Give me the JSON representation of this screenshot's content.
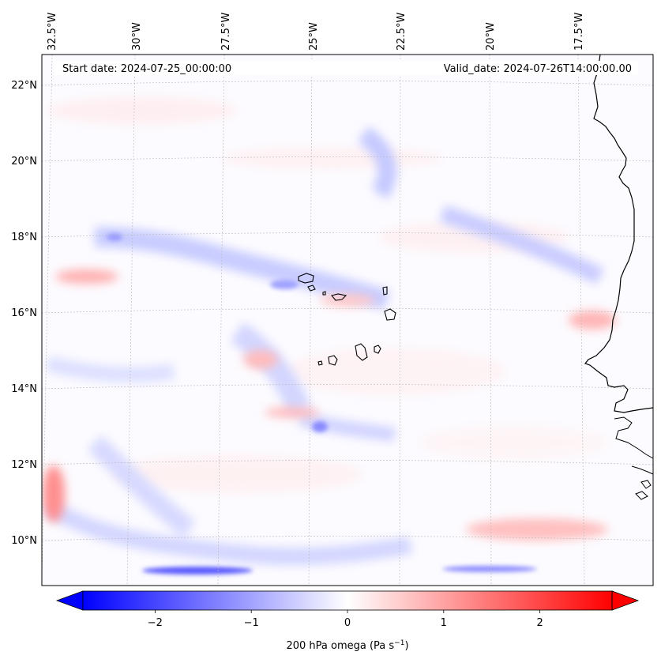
{
  "header": {
    "start_date": "Start date: 2024-07-25_00:00:00",
    "valid_date": "Valid_date: 2024-07-26T14:00:00.00"
  },
  "axes": {
    "lon_labels": [
      "32.5°W",
      "30°W",
      "27.5°W",
      "25°W",
      "22.5°W",
      "20°W",
      "17.5°W"
    ],
    "lat_labels": [
      "22°N",
      "20°N",
      "18°N",
      "16°N",
      "14°N",
      "12°N",
      "10°N"
    ]
  },
  "colorbar": {
    "label": "200 hPa omega (Pa s",
    "label_sup": "−1",
    "label_close": ")",
    "ticks": [
      "−2",
      "−1",
      "0",
      "1",
      "2"
    ],
    "min": -2.75,
    "max": 2.75,
    "low_color": "#0000ff",
    "mid_color": "#ffffff",
    "high_color": "#ff0000"
  },
  "field": {
    "variable": "200 hPa omega",
    "units": "Pa s-1"
  }
}
